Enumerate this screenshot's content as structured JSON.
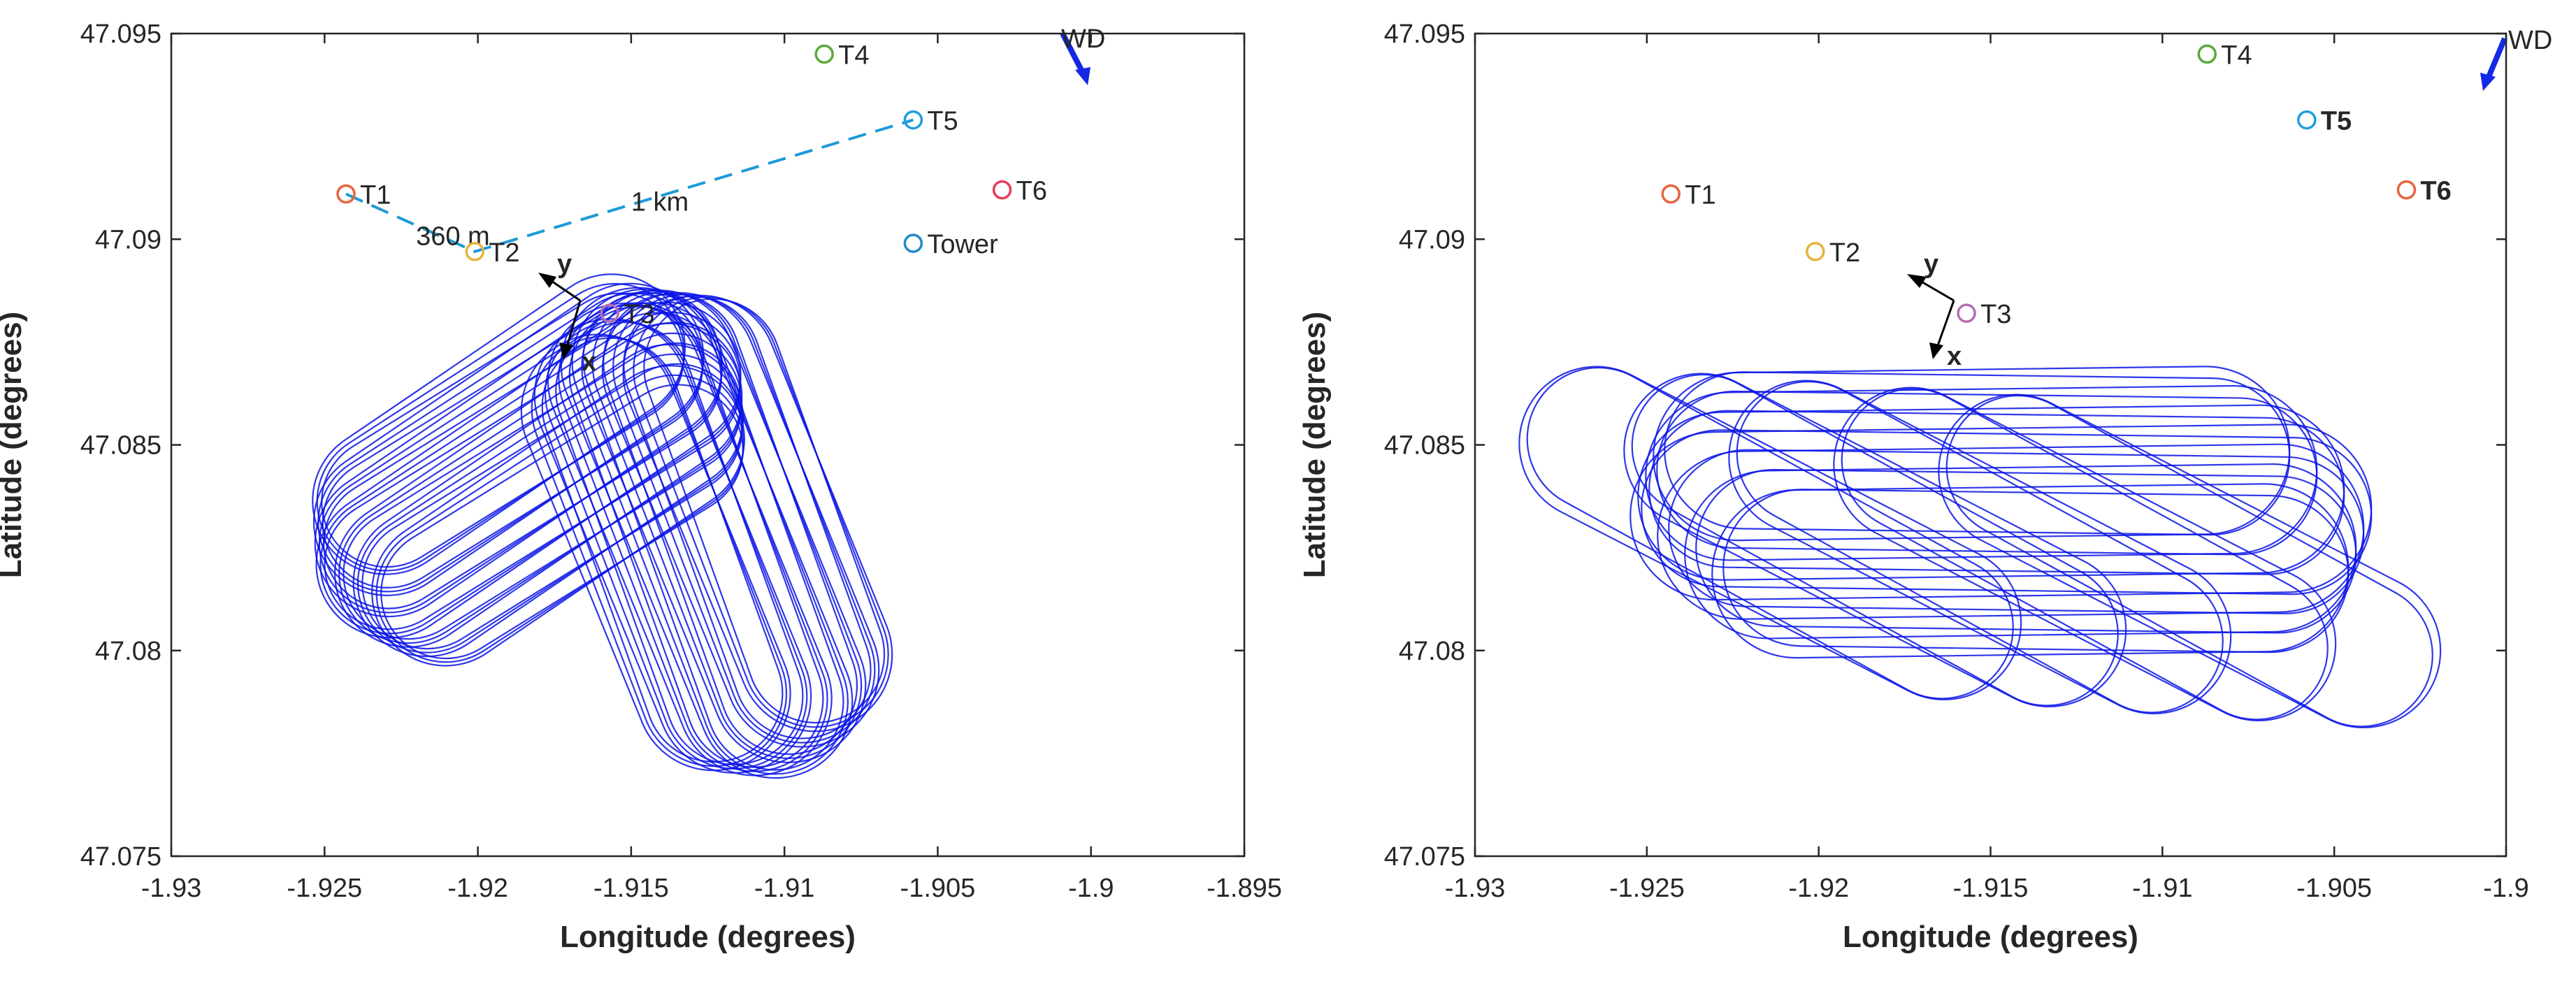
{
  "chart_data": [
    {
      "type": "scatter",
      "panel": "left",
      "xlabel": "Longitude (degrees)",
      "ylabel": "Latitude  (degrees)",
      "xlim": [
        -1.93,
        -1.895
      ],
      "ylim": [
        47.075,
        47.095
      ],
      "xticks": [
        "-1.93",
        "-1.925",
        "-1.92",
        "-1.915",
        "-1.91",
        "-1.905",
        "-1.9",
        "-1.895"
      ],
      "yticks": [
        "47.075",
        "47.08",
        "47.085",
        "47.09",
        "47.095"
      ],
      "grid": false,
      "series": [
        {
          "type": "marker",
          "label": "T1",
          "x": -1.9243,
          "y": 47.0911,
          "color": "#e8643c"
        },
        {
          "type": "marker",
          "label": "T2",
          "x": -1.9201,
          "y": 47.0897,
          "color": "#e6b43c"
        },
        {
          "type": "marker",
          "label": "T3",
          "x": -1.9157,
          "y": 47.0882,
          "color": "#b46eb4"
        },
        {
          "type": "marker",
          "label": "T4",
          "x": -1.9087,
          "y": 47.0945,
          "color": "#5aaa3c"
        },
        {
          "type": "marker",
          "label": "T5",
          "x": -1.9058,
          "y": 47.0929,
          "color": "#1ea0dc"
        },
        {
          "type": "marker",
          "label": "T6",
          "x": -1.9029,
          "y": 47.0912,
          "color": "#e63c5a"
        },
        {
          "type": "marker",
          "label": "Tower",
          "x": -1.9058,
          "y": 47.0899,
          "color": "#1e8cc8"
        }
      ],
      "distance_labels": [
        "360 m",
        "1 km"
      ],
      "axis_labels": [
        "y",
        "x"
      ],
      "wind_label": "WD",
      "flight_pattern": {
        "center": [
          -1.9147,
          47.0832
        ],
        "angle_deg": -33
      }
    },
    {
      "type": "scatter",
      "panel": "right",
      "xlabel": "Longitude (degrees)",
      "ylabel": "Latitude  (degrees)",
      "xlim": [
        -1.93,
        -1.9
      ],
      "ylim": [
        47.075,
        47.095
      ],
      "xticks": [
        "-1.93",
        "-1.925",
        "-1.92",
        "-1.915",
        "-1.91",
        "-1.905",
        "-1.9"
      ],
      "yticks": [
        "47.075",
        "47.08",
        "47.085",
        "47.09",
        "47.095"
      ],
      "grid": false,
      "series": [
        {
          "type": "marker",
          "label": "T1",
          "x": -1.9243,
          "y": 47.0911,
          "color": "#e8643c"
        },
        {
          "type": "marker",
          "label": "T2",
          "x": -1.9201,
          "y": 47.0897,
          "color": "#e6b43c"
        },
        {
          "type": "marker",
          "label": "T3",
          "x": -1.9157,
          "y": 47.0882,
          "color": "#b46eb4"
        },
        {
          "type": "marker",
          "label": "T4",
          "x": -1.9087,
          "y": 47.0945,
          "color": "#5aaa3c"
        },
        {
          "type": "marker",
          "label": "T5",
          "x": -1.9058,
          "y": 47.0929,
          "color": "#1ea0dc",
          "bold": true
        },
        {
          "type": "marker",
          "label": "T6",
          "x": -1.9029,
          "y": 47.0912,
          "color": "#e8643c",
          "bold": true
        }
      ],
      "axis_labels": [
        "y",
        "x"
      ],
      "wind_label": "WD",
      "flight_pattern": {
        "center": [
          -1.9147,
          47.0826
        ],
        "angle_deg": 0
      }
    }
  ],
  "colors": {
    "flight": "#0a14e6",
    "axes": "#262626",
    "dashed": "#1e9ad6",
    "wind_arrow": "#1428e6"
  }
}
